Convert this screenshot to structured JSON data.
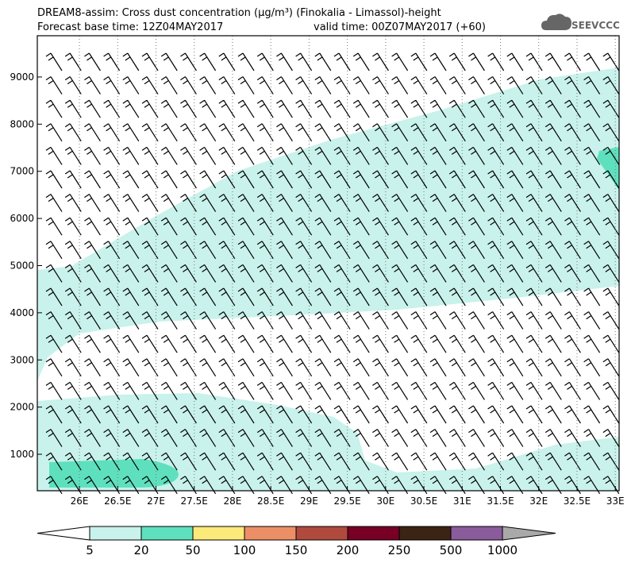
{
  "chart_data": {
    "type": "cross-section",
    "title": "DREAM8-assim: Cross dust concentration (μg/m³) (Finokalia - Limassol)-height",
    "subtitle": "Forecast base time: 12Z04MAY2017",
    "valid_time": "valid time: 00Z07MAY2017 (+60)",
    "logo": "SEEVCCC",
    "xlim": [
      25.45,
      33.05
    ],
    "xticks": [
      {
        "value": 26,
        "label": "26E"
      },
      {
        "value": 26.5,
        "label": "26.5E"
      },
      {
        "value": 27,
        "label": "27E"
      },
      {
        "value": 27.5,
        "label": "27.5E"
      },
      {
        "value": 28,
        "label": "28E"
      },
      {
        "value": 28.5,
        "label": "28.5E"
      },
      {
        "value": 29,
        "label": "29E"
      },
      {
        "value": 29.5,
        "label": "29.5E"
      },
      {
        "value": 30,
        "label": "30E"
      },
      {
        "value": 30.5,
        "label": "30.5E"
      },
      {
        "value": 31,
        "label": "31E"
      },
      {
        "value": 31.5,
        "label": "31.5E"
      },
      {
        "value": 32,
        "label": "32E"
      },
      {
        "value": 32.5,
        "label": "32.5E"
      },
      {
        "value": 33,
        "label": "33E"
      }
    ],
    "ylim": [
      226,
      9875
    ],
    "yticks": [
      1000,
      2000,
      3000,
      4000,
      5000,
      6000,
      7000,
      8000,
      9000
    ],
    "grid": true,
    "colorbar": {
      "levels": [
        5,
        20,
        50,
        100,
        150,
        200,
        250,
        500,
        1000
      ],
      "colors": [
        "#ffffff",
        "#c8f2eb",
        "#5ee0be",
        "#fbe97a",
        "#ec8f67",
        "#b04a3e",
        "#780025",
        "#3b2414",
        "#8a5c9c",
        "#a9a9a9"
      ]
    }
  }
}
